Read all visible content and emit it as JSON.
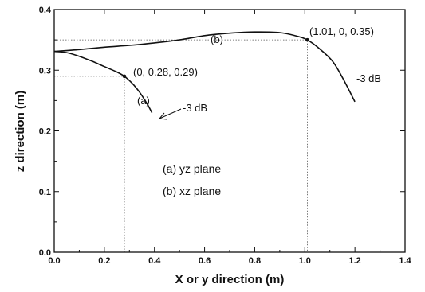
{
  "chart_data": {
    "type": "line",
    "xlabel": "X or y direction (m)",
    "ylabel": "z direction (m)",
    "xlim": [
      0.0,
      1.4
    ],
    "ylim": [
      0.0,
      0.4
    ],
    "x_ticks": [
      "0.0",
      "0.2",
      "0.4",
      "0.6",
      "0.8",
      "1.0",
      "1.2",
      "1.4"
    ],
    "y_ticks": [
      "0.0",
      "0.1",
      "0.2",
      "0.3",
      "0.4"
    ],
    "grid": false,
    "series": [
      {
        "name": "(a)",
        "points": [
          [
            0.0,
            0.331
          ],
          [
            0.05,
            0.329
          ],
          [
            0.1,
            0.323
          ],
          [
            0.15,
            0.315
          ],
          [
            0.2,
            0.306
          ],
          [
            0.25,
            0.297
          ],
          [
            0.28,
            0.29
          ],
          [
            0.31,
            0.279
          ],
          [
            0.34,
            0.264
          ],
          [
            0.37,
            0.245
          ],
          [
            0.39,
            0.23
          ]
        ]
      },
      {
        "name": "(b)",
        "points": [
          [
            0.0,
            0.331
          ],
          [
            0.1,
            0.334
          ],
          [
            0.2,
            0.338
          ],
          [
            0.3,
            0.341
          ],
          [
            0.4,
            0.345
          ],
          [
            0.5,
            0.35
          ],
          [
            0.6,
            0.357
          ],
          [
            0.7,
            0.361
          ],
          [
            0.8,
            0.363
          ],
          [
            0.9,
            0.362
          ],
          [
            0.97,
            0.356
          ],
          [
            1.01,
            0.35
          ],
          [
            1.06,
            0.335
          ],
          [
            1.11,
            0.315
          ],
          [
            1.15,
            0.288
          ],
          [
            1.2,
            0.248
          ]
        ]
      }
    ],
    "markers": [
      {
        "x": 0.28,
        "y": 0.29,
        "label": "(0, 0.28, 0.29)"
      },
      {
        "x": 1.01,
        "y": 0.35,
        "label": "(1.01, 0, 0.35)"
      }
    ],
    "annotations": {
      "a_label": "(a)",
      "b_label": "(b)",
      "a_db": "-3 dB",
      "b_db": "-3 dB",
      "legend_a": "(a) yz plane",
      "legend_b": "(b) xz plane"
    }
  }
}
